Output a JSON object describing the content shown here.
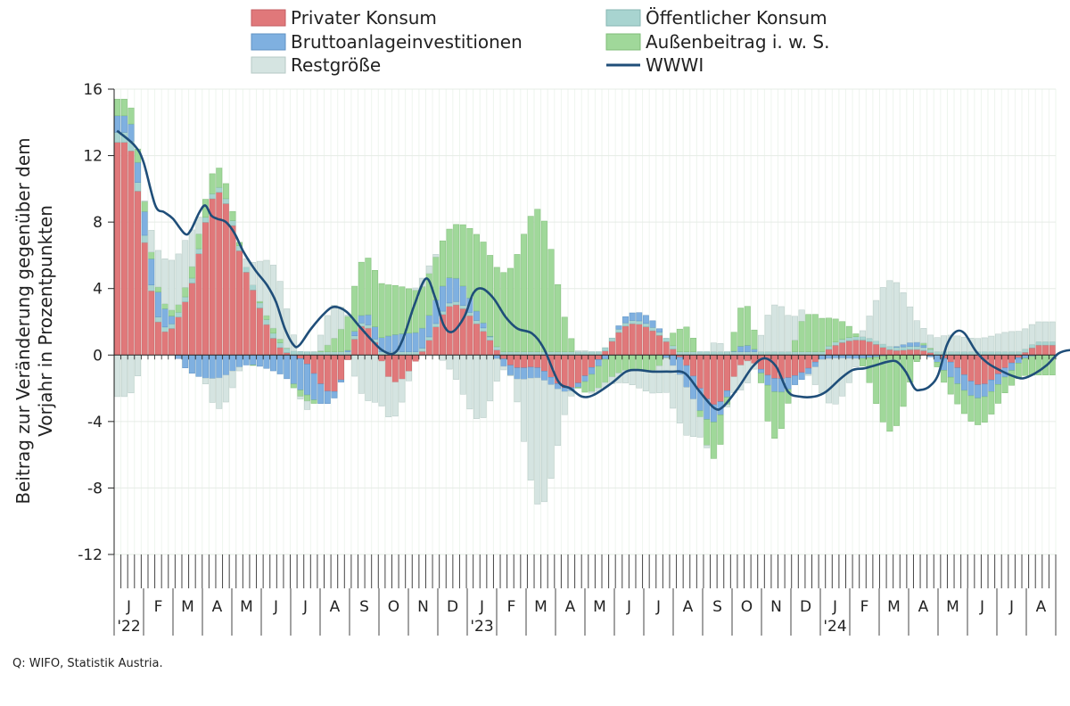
{
  "chart_data": {
    "type": "bar",
    "stacked": true,
    "ylabel_lines": [
      "Beitrag zur Veränderung gegenüber dem",
      "Vorjahr in Prozentpunkten"
    ],
    "ylim": [
      -12,
      16
    ],
    "yticks": [
      16,
      12,
      8,
      4,
      0,
      -4,
      -8,
      -12
    ],
    "grid": true,
    "legend_position": "top",
    "months": [
      "J",
      "F",
      "M",
      "A",
      "M",
      "J",
      "J",
      "A",
      "S",
      "O",
      "N",
      "D",
      "J",
      "F",
      "M",
      "A",
      "M",
      "J",
      "J",
      "A",
      "S",
      "O",
      "N",
      "D",
      "J",
      "F",
      "M",
      "A",
      "M",
      "J",
      "J",
      "A"
    ],
    "years": [
      {
        "label": "'22",
        "month_index": 0
      },
      {
        "label": "'23",
        "month_index": 12
      },
      {
        "label": "'24",
        "month_index": 24
      }
    ],
    "weeks_per_month": 4.33,
    "series": [
      {
        "name": "Privater Konsum",
        "color": "#e0787a",
        "monthly": [
          12.8,
          2.0,
          3.5,
          9.8,
          5.0,
          0.8,
          -0.4,
          -2.2,
          1.8,
          -1.6,
          0.2,
          3.0,
          1.6,
          -0.6,
          -0.8,
          -2.0,
          -0.3,
          1.8,
          1.3,
          -0.6,
          -3.0,
          -0.4,
          -1.4,
          -1.0,
          0.5,
          0.9,
          0.3,
          0.3,
          -0.4,
          -1.8,
          -0.6,
          0.6
        ]
      },
      {
        "name": "Öffentlicher Konsum",
        "color": "#a8d4d0",
        "monthly": [
          0.6,
          0.3,
          0.3,
          0.3,
          0.3,
          0.3,
          0.2,
          0.2,
          0.2,
          0.2,
          0.2,
          0.2,
          0.2,
          0.2,
          0.2,
          0.2,
          0.2,
          0.2,
          0.2,
          0.2,
          0.2,
          0.2,
          0.2,
          0.2,
          0.2,
          0.2,
          0.2,
          0.2,
          0.2,
          0.2,
          0.2,
          0.2
        ]
      },
      {
        "name": "Bruttoanlageinvestitionen",
        "color": "#7fb0e0",
        "monthly": [
          1.0,
          1.5,
          -0.9,
          -1.4,
          -0.6,
          -1.0,
          -1.9,
          -0.4,
          0.5,
          1.0,
          1.2,
          1.5,
          0.4,
          -0.6,
          -0.6,
          -0.2,
          -0.4,
          0.4,
          0.3,
          -1.3,
          -1.0,
          0.4,
          -0.8,
          -0.4,
          -0.2,
          -0.2,
          0.0,
          0.2,
          -0.9,
          -0.8,
          -0.5,
          0.0
        ]
      },
      {
        "name": "Außenbeitrag i. w. S.",
        "color": "#a0d89a",
        "monthly": [
          1.0,
          0.3,
          0.6,
          1.2,
          0.0,
          0.3,
          -0.4,
          0.8,
          3.3,
          3.0,
          2.5,
          3.0,
          4.8,
          5.0,
          8.5,
          1.2,
          -1.3,
          -0.9,
          -0.8,
          1.5,
          -2.2,
          2.5,
          -2.8,
          2.0,
          1.5,
          -0.4,
          -4.6,
          0.0,
          -1.0,
          -1.6,
          -0.9,
          -1.2
        ]
      },
      {
        "name": "Restgröße",
        "color": "#d5e4e1",
        "monthly": [
          -2.5,
          2.2,
          2.7,
          -1.8,
          0.5,
          3.8,
          -0.5,
          2.0,
          -2.5,
          -2.2,
          0.5,
          -1.0,
          -3.9,
          0.0,
          -7.7,
          -0.6,
          -0.2,
          -0.8,
          -1.5,
          -2.9,
          0.6,
          -1.5,
          2.8,
          0.5,
          -2.8,
          0.3,
          4.0,
          1.0,
          1.0,
          0.8,
          1.2,
          1.2
        ]
      }
    ],
    "line": {
      "name": "WWWI",
      "color": "#1f4e79",
      "points": [
        [
          0,
          13.5
        ],
        [
          0.6,
          12.6
        ],
        [
          0.9,
          11.6
        ],
        [
          1.3,
          9.0
        ],
        [
          1.6,
          8.6
        ],
        [
          1.9,
          8.2
        ],
        [
          2.3,
          7.3
        ],
        [
          2.5,
          7.5
        ],
        [
          2.8,
          8.6
        ],
        [
          3.0,
          9.0
        ],
        [
          3.2,
          8.4
        ],
        [
          3.4,
          8.2
        ],
        [
          3.7,
          8.0
        ],
        [
          4.0,
          7.3
        ],
        [
          4.3,
          6.2
        ],
        [
          4.7,
          5.1
        ],
        [
          5.1,
          4.2
        ],
        [
          5.4,
          3.2
        ],
        [
          5.7,
          1.6
        ],
        [
          6.0,
          0.6
        ],
        [
          6.2,
          0.6
        ],
        [
          6.6,
          1.6
        ],
        [
          7.1,
          2.6
        ],
        [
          7.4,
          2.9
        ],
        [
          7.8,
          2.6
        ],
        [
          8.2,
          1.8
        ],
        [
          8.6,
          1.0
        ],
        [
          9.0,
          0.3
        ],
        [
          9.4,
          0.1
        ],
        [
          9.7,
          0.9
        ],
        [
          10.1,
          3.0
        ],
        [
          10.5,
          4.6
        ],
        [
          10.8,
          3.5
        ],
        [
          11.1,
          1.8
        ],
        [
          11.4,
          1.4
        ],
        [
          11.8,
          2.3
        ],
        [
          12.1,
          3.7
        ],
        [
          12.4,
          4.0
        ],
        [
          12.8,
          3.4
        ],
        [
          13.2,
          2.3
        ],
        [
          13.6,
          1.6
        ],
        [
          14.1,
          1.3
        ],
        [
          14.5,
          0.4
        ],
        [
          15.0,
          -1.6
        ],
        [
          15.4,
          -2.0
        ],
        [
          15.8,
          -2.5
        ],
        [
          16.2,
          -2.4
        ],
        [
          16.8,
          -1.7
        ],
        [
          17.3,
          -1.0
        ],
        [
          17.7,
          -0.9
        ],
        [
          18.2,
          -1.0
        ],
        [
          18.8,
          -1.0
        ],
        [
          19.3,
          -1.1
        ],
        [
          19.8,
          -2.2
        ],
        [
          20.3,
          -3.2
        ],
        [
          20.6,
          -3.1
        ],
        [
          21.1,
          -2.0
        ],
        [
          21.6,
          -0.7
        ],
        [
          22.0,
          -0.2
        ],
        [
          22.4,
          -0.7
        ],
        [
          22.8,
          -2.2
        ],
        [
          23.2,
          -2.5
        ],
        [
          23.7,
          -2.5
        ],
        [
          24.1,
          -2.2
        ],
        [
          24.6,
          -1.4
        ],
        [
          25.0,
          -0.9
        ],
        [
          25.4,
          -0.8
        ],
        [
          25.8,
          -0.6
        ],
        [
          26.2,
          -0.4
        ],
        [
          26.5,
          -0.4
        ],
        [
          26.8,
          -1.0
        ],
        [
          27.1,
          -2.0
        ],
        [
          27.3,
          -2.1
        ],
        [
          27.6,
          -1.9
        ],
        [
          27.9,
          -1.2
        ],
        [
          28.2,
          0.6
        ],
        [
          28.5,
          1.4
        ],
        [
          28.8,
          1.3
        ],
        [
          29.2,
          0.2
        ],
        [
          29.6,
          -0.5
        ],
        [
          30.1,
          -1.0
        ],
        [
          30.5,
          -1.3
        ],
        [
          30.8,
          -1.4
        ],
        [
          31.2,
          -1.1
        ],
        [
          31.6,
          -0.6
        ],
        [
          32.0,
          0.1
        ],
        [
          32.4,
          0.3
        ],
        [
          32.6,
          0.2
        ],
        [
          32.8,
          -0.1
        ]
      ]
    }
  },
  "legend": {
    "private": "Privater Konsum",
    "public": "Öffentlicher Konsum",
    "investment": "Bruttoanlageinvestitionen",
    "external": "Außenbeitrag i. w. S.",
    "residual": "Restgröße",
    "wwwi": "WWWI"
  },
  "source_note": "Q: WIFO, Statistik Austria."
}
